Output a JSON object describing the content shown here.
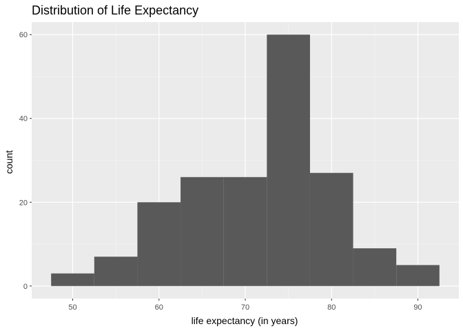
{
  "chart_data": {
    "type": "bar",
    "title": "Distribution of Life Expectancy",
    "xlabel": "life expectancy (in years)",
    "ylabel": "count",
    "bins": [
      {
        "x0": 47.5,
        "x1": 52.5,
        "count": 3
      },
      {
        "x0": 52.5,
        "x1": 57.5,
        "count": 7
      },
      {
        "x0": 57.5,
        "x1": 62.5,
        "count": 20
      },
      {
        "x0": 62.5,
        "x1": 67.5,
        "count": 26
      },
      {
        "x0": 67.5,
        "x1": 72.5,
        "count": 26
      },
      {
        "x0": 72.5,
        "x1": 77.5,
        "count": 60
      },
      {
        "x0": 77.5,
        "x1": 82.5,
        "count": 27
      },
      {
        "x0": 82.5,
        "x1": 87.5,
        "count": 9
      },
      {
        "x0": 87.5,
        "x1": 92.5,
        "count": 5
      }
    ],
    "xlim": [
      45.25,
      94.75
    ],
    "ylim": [
      -3,
      63
    ],
    "x_ticks": [
      50,
      60,
      70,
      80,
      90
    ],
    "x_minor_ticks": [
      55,
      65,
      75,
      85
    ],
    "y_ticks": [
      0,
      20,
      40,
      60
    ],
    "y_minor_ticks": [
      10,
      30,
      50
    ],
    "x_tick_labels": [
      "50",
      "60",
      "70",
      "80",
      "90"
    ],
    "y_tick_labels": [
      "0",
      "20",
      "40",
      "60"
    ],
    "grid": true,
    "legend": "none",
    "colors": {
      "bar": "#595959",
      "panel": "#ebebeb",
      "grid_major": "#ffffff",
      "grid_minor": "#f5f5f5",
      "tick": "#333333"
    }
  }
}
